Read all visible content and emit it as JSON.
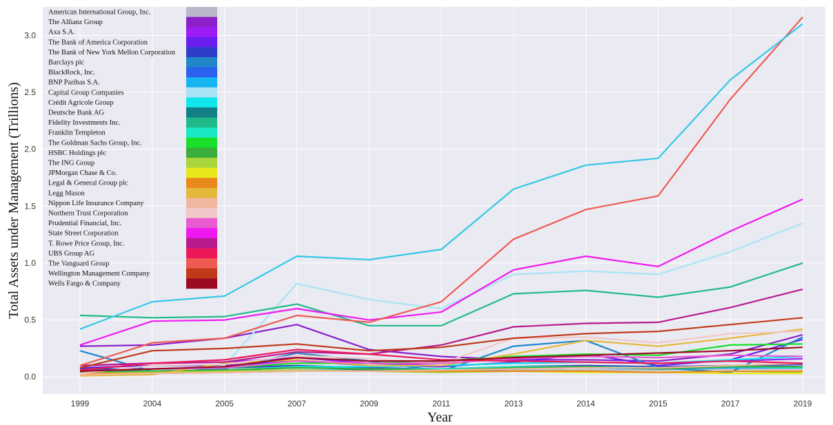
{
  "chart_data": {
    "type": "line",
    "xlabel": "Year",
    "ylabel": "Total Assets under Management (Trillions)",
    "categories": [
      "1999",
      "2004",
      "2005",
      "2007",
      "2009",
      "2011",
      "2013",
      "2014",
      "2015",
      "2017",
      "2019"
    ],
    "yticks": [
      "0.0",
      "0.5",
      "1.0",
      "1.5",
      "2.0",
      "2.5",
      "3.0"
    ],
    "ylim": [
      -0.15,
      3.25
    ],
    "grid": true,
    "legend_position": "top-left",
    "series": [
      {
        "name": "American International Group, Inc.",
        "color": "#b8b8c8",
        "values": [
          0.05,
          0.05,
          0.05,
          0.06,
          0.05,
          0.05,
          0.06,
          0.06,
          0.06,
          0.07,
          0.07
        ]
      },
      {
        "name": "The Allianz Group",
        "color": "#8b1fc9",
        "values": [
          0.27,
          0.28,
          0.34,
          0.46,
          0.24,
          0.18,
          0.15,
          0.15,
          0.14,
          0.2,
          0.37
        ]
      },
      {
        "name": "Axa S.A.",
        "color": "#9b1cf5",
        "values": [
          0.1,
          0.12,
          0.13,
          0.17,
          0.12,
          0.1,
          0.12,
          0.13,
          0.12,
          0.14,
          0.16
        ]
      },
      {
        "name": "The Bank of America Corporation",
        "color": "#6a1ff0",
        "values": [
          0.08,
          0.1,
          0.1,
          0.14,
          0.1,
          0.09,
          0.13,
          0.2,
          0.1,
          0.15,
          0.33
        ]
      },
      {
        "name": "The Bank of New York Mellon Corporation",
        "color": "#2f3ec8",
        "values": [
          0.07,
          0.07,
          0.08,
          0.1,
          0.08,
          0.07,
          0.09,
          0.1,
          0.09,
          0.1,
          0.11
        ]
      },
      {
        "name": "Barclays plc",
        "color": "#1f86c8",
        "values": [
          0.23,
          0.05,
          0.07,
          0.21,
          0.14,
          0.05,
          0.27,
          0.32,
          0.08,
          0.04,
          0.35
        ]
      },
      {
        "name": "BlackRock, Inc.",
        "color": "#2a62ee",
        "values": [
          0.03,
          0.03,
          0.04,
          0.05,
          0.05,
          0.05,
          0.07,
          0.08,
          0.08,
          0.1,
          0.09
        ]
      },
      {
        "name": "BNP Paribas S.A.",
        "color": "#16b4f0",
        "values": [
          0.04,
          0.04,
          0.05,
          0.06,
          0.06,
          0.07,
          0.07,
          0.08,
          0.07,
          0.08,
          0.08
        ]
      },
      {
        "name": "Capital Group Companies",
        "color": "#a8e4f6",
        "values": [
          0.02,
          0.03,
          0.1,
          0.82,
          0.68,
          0.6,
          0.9,
          0.93,
          0.9,
          1.1,
          1.35
        ]
      },
      {
        "name": "Crédit Agricole Group",
        "color": "#10e6ec",
        "values": [
          0.02,
          0.04,
          0.05,
          0.09,
          0.09,
          0.1,
          0.12,
          0.13,
          0.12,
          0.15,
          0.18
        ]
      },
      {
        "name": "Deutsche Bank AG",
        "color": "#137f86",
        "values": [
          0.06,
          0.05,
          0.05,
          0.09,
          0.06,
          0.04,
          0.08,
          0.09,
          0.08,
          0.1,
          0.08
        ]
      },
      {
        "name": "Fidelity Investments Inc.",
        "color": "#20ba88",
        "values": [
          0.54,
          0.52,
          0.53,
          0.64,
          0.45,
          0.45,
          0.73,
          0.76,
          0.7,
          0.79,
          1.0
        ]
      },
      {
        "name": "Franklin Templeton",
        "color": "#1ae8c4",
        "values": [
          0.04,
          0.05,
          0.06,
          0.09,
          0.07,
          0.07,
          0.09,
          0.09,
          0.08,
          0.09,
          0.08
        ]
      },
      {
        "name": "The Goldman Sachs Group, Inc.",
        "color": "#19e02a",
        "values": [
          0.05,
          0.07,
          0.08,
          0.12,
          0.12,
          0.14,
          0.18,
          0.2,
          0.19,
          0.28,
          0.29
        ]
      },
      {
        "name": "HSBC Holdings plc",
        "color": "#3aad3c",
        "values": [
          0.04,
          0.05,
          0.06,
          0.08,
          0.07,
          0.06,
          0.08,
          0.09,
          0.07,
          0.09,
          0.09
        ]
      },
      {
        "name": "The ING Group",
        "color": "#a8d63a",
        "values": [
          0.03,
          0.04,
          0.05,
          0.06,
          0.05,
          0.04,
          0.05,
          0.05,
          0.04,
          0.05,
          0.04
        ]
      },
      {
        "name": "JPMorgan Chase & Co.",
        "color": "#e8e81c",
        "values": [
          0.02,
          0.03,
          0.04,
          0.05,
          0.05,
          0.05,
          0.05,
          0.04,
          0.04,
          0.03,
          0.03
        ]
      },
      {
        "name": "Legal & General Group plc",
        "color": "#e88a1c",
        "values": [
          0.03,
          0.03,
          0.04,
          0.05,
          0.05,
          0.05,
          0.05,
          0.05,
          0.04,
          0.05,
          0.05
        ]
      },
      {
        "name": "Legg Mason",
        "color": "#e6b83a",
        "values": [
          0.01,
          0.02,
          0.12,
          0.15,
          0.1,
          0.1,
          0.2,
          0.32,
          0.27,
          0.34,
          0.42
        ]
      },
      {
        "name": "Nippon Life Insurance Company",
        "color": "#f0b8a0",
        "values": [
          0.02,
          0.03,
          0.04,
          0.05,
          0.05,
          0.06,
          0.07,
          0.08,
          0.08,
          0.1,
          0.12
        ]
      },
      {
        "name": "Northern Trust Corporation",
        "color": "#f2c8c8",
        "values": [
          0.03,
          0.1,
          0.11,
          0.19,
          0.16,
          0.12,
          0.34,
          0.35,
          0.3,
          0.38,
          0.4
        ]
      },
      {
        "name": "Prudential Financial, Inc.",
        "color": "#e85ad0",
        "values": [
          0.05,
          0.07,
          0.08,
          0.14,
          0.12,
          0.12,
          0.16,
          0.18,
          0.17,
          0.19,
          0.18
        ]
      },
      {
        "name": "State Street Corporation",
        "color": "#f018f0",
        "values": [
          0.28,
          0.49,
          0.5,
          0.6,
          0.5,
          0.57,
          0.94,
          1.06,
          0.97,
          1.28,
          1.56
        ]
      },
      {
        "name": "T. Rowe Price Group, Inc.",
        "color": "#b81a8e",
        "values": [
          0.1,
          0.12,
          0.13,
          0.22,
          0.2,
          0.28,
          0.44,
          0.47,
          0.48,
          0.61,
          0.77
        ]
      },
      {
        "name": "UBS Group AG",
        "color": "#ee1858",
        "values": [
          0.06,
          0.12,
          0.15,
          0.24,
          0.2,
          0.15,
          0.14,
          0.13,
          0.12,
          0.14,
          0.12
        ]
      },
      {
        "name": "The Vanguard Group",
        "color": "#ee5a52",
        "values": [
          0.1,
          0.3,
          0.34,
          0.54,
          0.48,
          0.66,
          1.21,
          1.47,
          1.59,
          2.44,
          3.16
        ]
      },
      {
        "name": "Wellington Management Company",
        "color": "#c0391a",
        "values": [
          0.08,
          0.23,
          0.25,
          0.29,
          0.23,
          0.26,
          0.34,
          0.38,
          0.4,
          0.46,
          0.52
        ]
      },
      {
        "name": "Wells Fargo & Company",
        "color": "#9c0a22",
        "values": [
          0.05,
          0.07,
          0.09,
          0.17,
          0.14,
          0.14,
          0.17,
          0.19,
          0.21,
          0.23,
          0.26
        ]
      },
      {
        "name": "",
        "color": "#32c8e6",
        "values": [
          0.42,
          0.66,
          0.71,
          1.06,
          1.03,
          1.12,
          1.65,
          1.86,
          1.92,
          2.61,
          3.1
        ]
      }
    ]
  }
}
